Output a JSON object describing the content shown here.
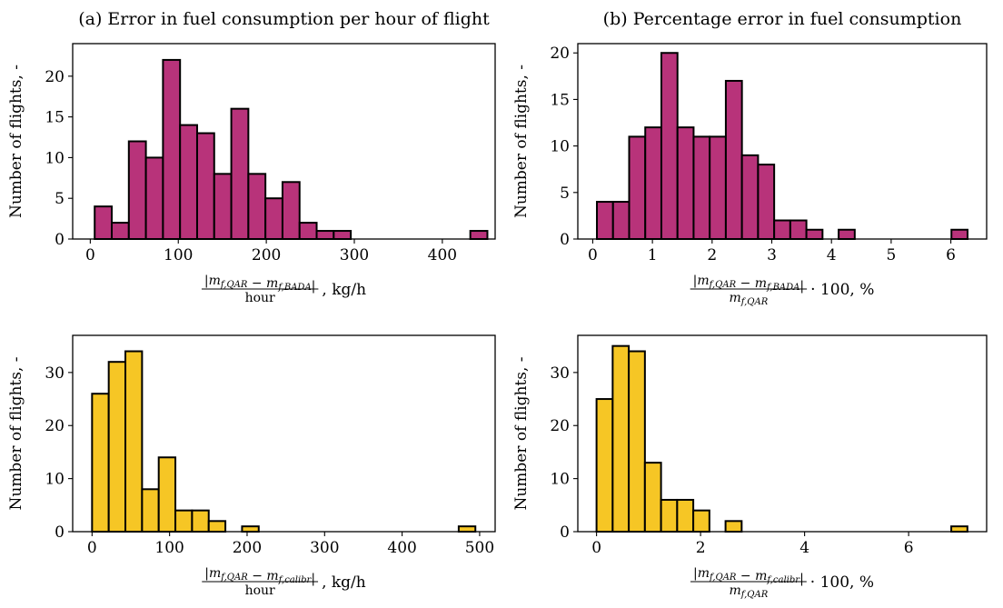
{
  "figure": {
    "colors": {
      "magenta_bar": "#b8337a",
      "yellow_bar": "#f6c625",
      "edge": "#000000"
    }
  },
  "chart_data": [
    {
      "type": "bar",
      "title": "(a) Error in fuel consumption per hour of flight",
      "ylabel": "Number of flights, -",
      "xlabel_frac_num": "|m_{f,QAR} − m_{f,BADA}|",
      "xlabel_frac_den": "hour",
      "xlabel_suffix": ", kg/h",
      "xlim": [
        -20,
        460
      ],
      "ylim": [
        0,
        24
      ],
      "xticks": [
        0,
        100,
        200,
        300,
        400
      ],
      "yticks": [
        0,
        5,
        10,
        15,
        20
      ],
      "bar_color": "#b8337a",
      "bins": {
        "edges": [
          5,
          24.4,
          43.8,
          63.2,
          82.6,
          102,
          121.4,
          140.8,
          160.2,
          179.6,
          199,
          218.4,
          237.8,
          257.2,
          276.6,
          296,
          315.4,
          334.8,
          354.2,
          373.6,
          393,
          412.4,
          431.8,
          451.2
        ],
        "counts": [
          4,
          2,
          12,
          10,
          22,
          14,
          13,
          8,
          16,
          8,
          5,
          7,
          2,
          1,
          1,
          0,
          0,
          0,
          0,
          0,
          0,
          0,
          1
        ]
      }
    },
    {
      "type": "bar",
      "title": "(b) Percentage error in fuel consumption",
      "ylabel": "Number of flights, -",
      "xlabel_frac_num": "|m_{f,QAR} − m_{f,BADA}|",
      "xlabel_frac_den": "m_{f,QAR}",
      "xlabel_suffix": "· 100, %",
      "xlim": [
        -0.25,
        6.6
      ],
      "ylim": [
        0,
        21
      ],
      "xticks": [
        0,
        1,
        2,
        3,
        4,
        5,
        6
      ],
      "yticks": [
        0,
        5,
        10,
        15,
        20
      ],
      "bar_color": "#b8337a",
      "bins": {
        "edges": [
          0.07,
          0.34,
          0.61,
          0.88,
          1.15,
          1.42,
          1.69,
          1.96,
          2.23,
          2.5,
          2.77,
          3.04,
          3.31,
          3.58,
          3.85,
          4.12,
          4.39,
          4.66,
          4.93,
          5.2,
          5.47,
          5.74,
          6.01,
          6.28
        ],
        "counts": [
          4,
          4,
          11,
          12,
          20,
          12,
          11,
          11,
          17,
          9,
          8,
          2,
          2,
          1,
          0,
          1,
          0,
          0,
          0,
          0,
          0,
          0,
          1
        ]
      }
    },
    {
      "type": "bar",
      "title": "",
      "ylabel": "Number of flights, -",
      "xlabel_frac_num": "|m_{f,QAR} − m_{f,calibr}|",
      "xlabel_frac_den": "hour",
      "xlabel_suffix": ", kg/h",
      "xlim": [
        -25,
        520
      ],
      "ylim": [
        0,
        37
      ],
      "xticks": [
        0,
        100,
        200,
        300,
        400,
        500
      ],
      "yticks": [
        0,
        10,
        20,
        30
      ],
      "bar_color": "#f6c625",
      "bins": {
        "edges": [
          0,
          21.5,
          43,
          64.5,
          86,
          107.5,
          129,
          150.5,
          172,
          193.5,
          215,
          236.5,
          258,
          279.5,
          301,
          322.5,
          344,
          365.5,
          387,
          408.5,
          430,
          451.5,
          473,
          494.5
        ],
        "counts": [
          26,
          32,
          34,
          8,
          14,
          4,
          4,
          2,
          0,
          1,
          0,
          0,
          0,
          0,
          0,
          0,
          0,
          0,
          0,
          0,
          0,
          0,
          1
        ]
      }
    },
    {
      "type": "bar",
      "title": "",
      "ylabel": "Number of flights, -",
      "xlabel_frac_num": "|m_{f,QAR} − m_{f,calibr}|",
      "xlabel_frac_den": "m_{f,QAR}",
      "xlabel_suffix": "· 100, %",
      "xlim": [
        -0.36,
        7.5
      ],
      "ylim": [
        0,
        37
      ],
      "xticks": [
        0,
        2,
        4,
        6
      ],
      "yticks": [
        0,
        10,
        20,
        30
      ],
      "bar_color": "#f6c625",
      "bins": {
        "edges": [
          0,
          0.31,
          0.62,
          0.93,
          1.24,
          1.55,
          1.86,
          2.17,
          2.48,
          2.79,
          3.1,
          3.41,
          3.72,
          4.03,
          4.34,
          4.65,
          4.96,
          5.27,
          5.58,
          5.89,
          6.2,
          6.51,
          6.82,
          7.13
        ],
        "counts": [
          25,
          35,
          34,
          13,
          6,
          6,
          4,
          0,
          2,
          0,
          0,
          0,
          0,
          0,
          0,
          0,
          0,
          0,
          0,
          0,
          0,
          0,
          1
        ]
      }
    }
  ]
}
